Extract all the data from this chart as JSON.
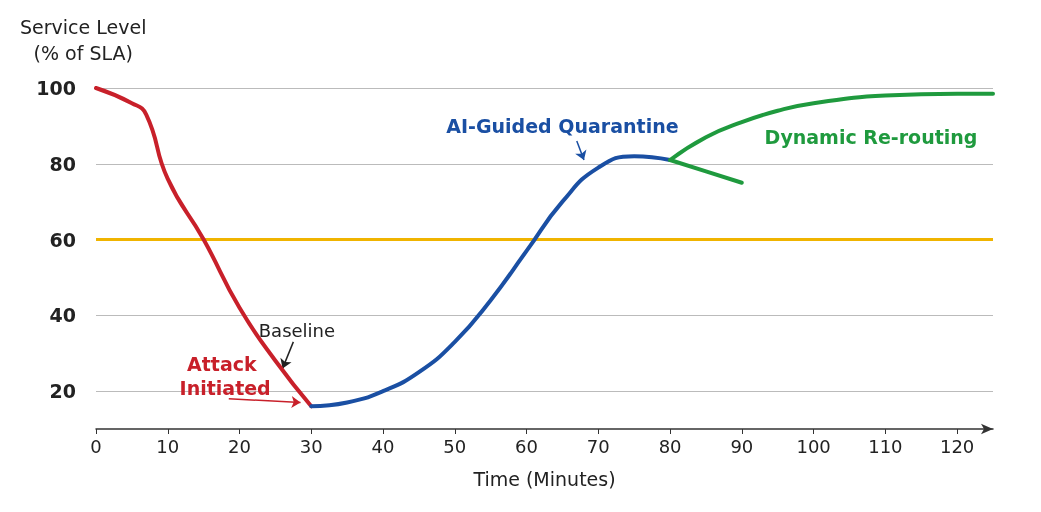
{
  "chart_data": {
    "type": "line",
    "xlabel": "Time (Minutes)",
    "ylabel": "Service Level\n(% of SLA)",
    "xlim": [
      0,
      125
    ],
    "xticks": [
      0,
      10,
      20,
      30,
      40,
      50,
      60,
      70,
      80,
      90,
      100,
      110,
      120
    ],
    "ylim": [
      10,
      100
    ],
    "yticks": [
      20,
      40,
      60,
      80,
      100
    ],
    "grid": "y",
    "legend": false,
    "marker": "none",
    "line_style": "solid",
    "series": [
      {
        "name": "Attack Initiated",
        "color": "#c8202a",
        "x": [
          0,
          5,
          7,
          10,
          15,
          20,
          25,
          30
        ],
        "values": [
          100,
          96,
          93,
          76,
          60,
          42,
          28,
          16
        ]
      },
      {
        "name": "AI-Guided Quarantine",
        "color": "#1a4fa3",
        "x": [
          30,
          35,
          40,
          45,
          50,
          55,
          60,
          65,
          70,
          75,
          80
        ],
        "values": [
          16,
          17,
          20,
          25,
          33,
          44,
          57,
          70,
          79,
          82,
          81
        ]
      },
      {
        "name": "Dynamic Re-routing",
        "color": "#1f9a3e",
        "x": [
          80,
          85,
          90,
          95,
          100,
          110,
          120,
          125
        ],
        "values": [
          81,
          87,
          91,
          94,
          96,
          98,
          98.5,
          98.5
        ]
      },
      {
        "color": "#1f9a3e",
        "x": [
          80,
          85,
          90
        ],
        "values": [
          81,
          78,
          75
        ]
      }
    ],
    "ref_lines": [
      {
        "axis": "y",
        "value": 60,
        "color": "#f0b400",
        "line_style": "solid"
      }
    ],
    "annotations": [
      {
        "text": "Baseline",
        "x": 26,
        "y": 25
      }
    ]
  }
}
